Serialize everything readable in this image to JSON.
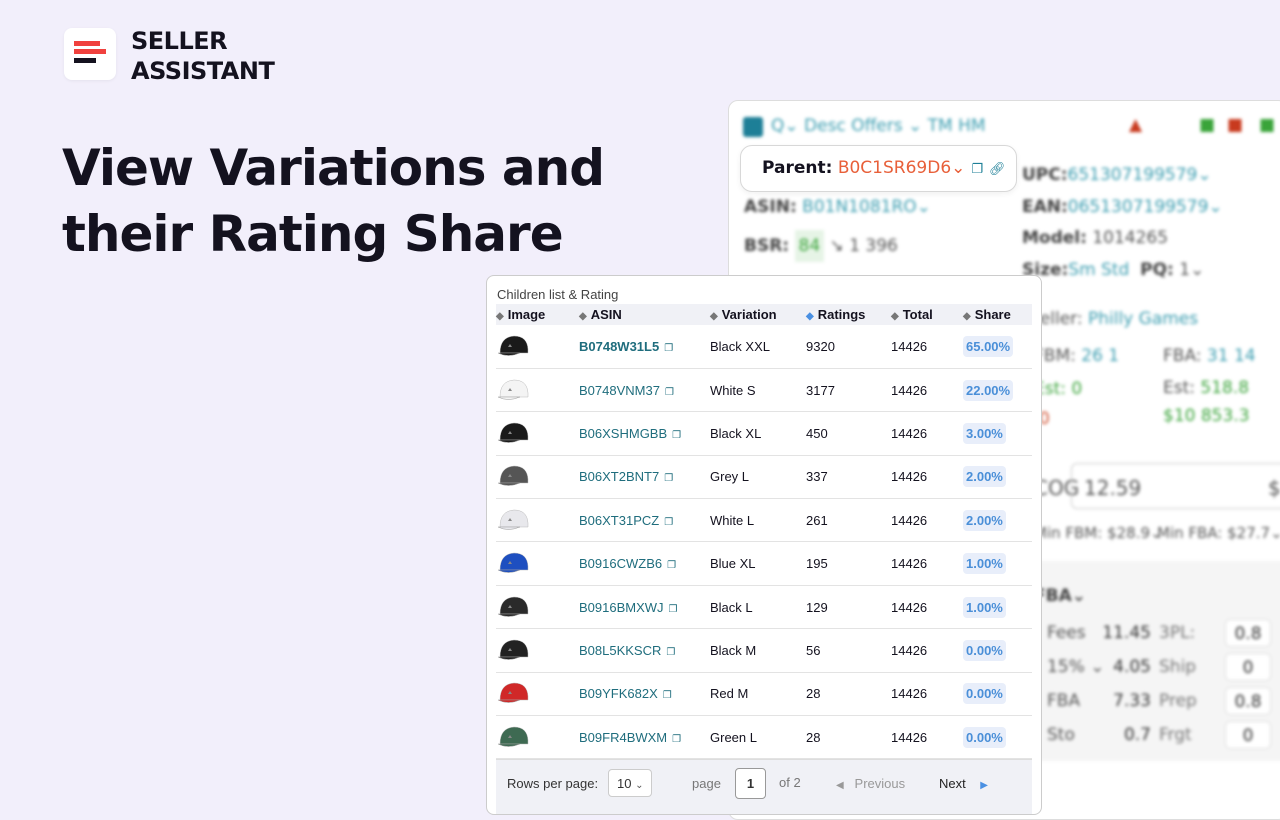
{
  "brand": {
    "name_line1": "SELLER",
    "name_line2": "ASSISTANT",
    "colors": {
      "red": "#f0413e",
      "dark": "#14121f"
    }
  },
  "headline": {
    "line1": "View Variations and",
    "line2": "their Rating Share"
  },
  "background_panel": {
    "toolbar": "Q⌄ Desc Offers ⌄ TM HM",
    "asin_label": "ASIN:",
    "asin": "B01N1081RO⌄",
    "bsr_label": "BSR:",
    "bsr": "84",
    "bsr_trend": "↘ 1 396",
    "upc_label": "UPC:",
    "upc": "651307199579⌄",
    "ean_label": "EAN:",
    "ean": "0651307199579⌄",
    "model_label": "Model:",
    "model": "1014265",
    "size_label": "Size:",
    "size": "Sm Std",
    "pq_label": "PQ:",
    "pq": "1⌄",
    "seller_label": "Seller:",
    "seller": "Philly Games",
    "fbm_label": "FBM:",
    "fbm": "26",
    "fbm2": "1",
    "fba_label": "FBA:",
    "fba": "31",
    "fba2": "14",
    "est_left": "Est: 0",
    "red_left": "0",
    "est_right_label": "Est:",
    "est_right": "518.8",
    "revenue": "$10 853.3",
    "cog_label": "COG",
    "cog_value": "12.59",
    "currency": "$",
    "min_fbm": "Min FBM: $28.9⌄",
    "min_fba": "Min FBA: $27.7⌄",
    "fba_section": "FBA⌄",
    "fees": [
      {
        "label": "Fees",
        "value": "11.45",
        "k": "3PL:",
        "v": "0.8"
      },
      {
        "label": "15% ⌄",
        "value": "4.05",
        "k": "Ship",
        "v": "0"
      },
      {
        "label": "FBA",
        "value": "7.33",
        "k": "Prep",
        "v": "0.8"
      },
      {
        "label": "Sto",
        "value": "0.7",
        "k": "Frgt",
        "v": "0"
      }
    ]
  },
  "parent": {
    "label": "Parent:",
    "value": "B0C1SR69D6⌄"
  },
  "table": {
    "title": "Children list & Rating",
    "columns": [
      "Image",
      "ASIN",
      "Variation",
      "Ratings",
      "Total",
      "Share"
    ],
    "sorted_column": "Ratings",
    "rows": [
      {
        "asin": "B0748W31L5",
        "variation": "Black XXL",
        "ratings": "9320",
        "total": "14426",
        "share": "65.00%",
        "cap": "#1a1a1a"
      },
      {
        "asin": "B0748VNM37",
        "variation": "White S",
        "ratings": "3177",
        "total": "14426",
        "share": "22.00%",
        "cap": "#f4f4f4"
      },
      {
        "asin": "B06XSHMGBB",
        "variation": "Black XL",
        "ratings": "450",
        "total": "14426",
        "share": "3.00%",
        "cap": "#1a1a1a"
      },
      {
        "asin": "B06XT2BNT7",
        "variation": "Grey L",
        "ratings": "337",
        "total": "14426",
        "share": "2.00%",
        "cap": "#555"
      },
      {
        "asin": "B06XT31PCZ",
        "variation": "White L",
        "ratings": "261",
        "total": "14426",
        "share": "2.00%",
        "cap": "#e8e8ec"
      },
      {
        "asin": "B0916CWZB6",
        "variation": "Blue XL",
        "ratings": "195",
        "total": "14426",
        "share": "1.00%",
        "cap": "#1e4fc0"
      },
      {
        "asin": "B0916BMXWJ",
        "variation": "Black L",
        "ratings": "129",
        "total": "14426",
        "share": "1.00%",
        "cap": "#2a2a2a"
      },
      {
        "asin": "B08L5KKSCR",
        "variation": "Black M",
        "ratings": "56",
        "total": "14426",
        "share": "0.00%",
        "cap": "#222"
      },
      {
        "asin": "B09YFK682X",
        "variation": "Red M",
        "ratings": "28",
        "total": "14426",
        "share": "0.00%",
        "cap": "#d02828"
      },
      {
        "asin": "B09FR4BWXM",
        "variation": "Green L",
        "ratings": "28",
        "total": "14426",
        "share": "0.00%",
        "cap": "#3e6a52"
      }
    ]
  },
  "pagination": {
    "rows_label": "Rows per page:",
    "rows_value": "10",
    "page_label": "page",
    "page": "1",
    "of": "of 2",
    "previous": "Previous",
    "next": "Next"
  }
}
